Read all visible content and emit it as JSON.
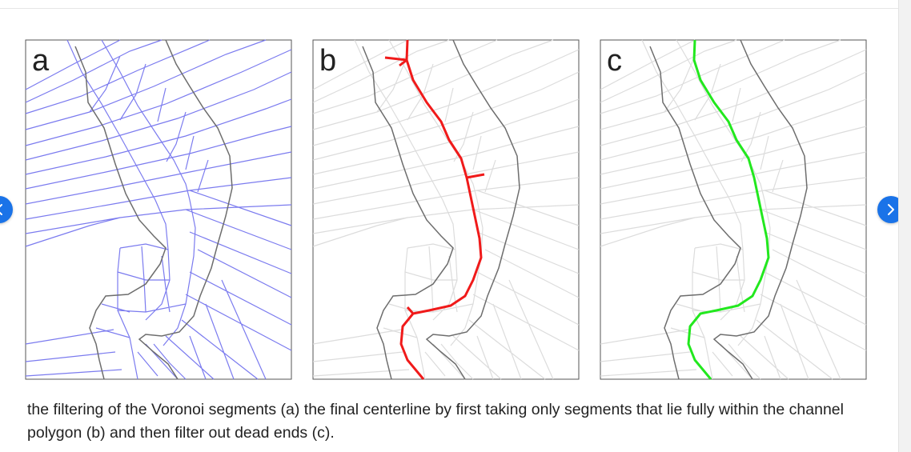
{
  "figure": {
    "panels": [
      {
        "label": "a",
        "network_color": "#7b7bef",
        "centerline_color": null
      },
      {
        "label": "b",
        "network_color": "#dcdcdc",
        "centerline_color": "#f01a1a"
      },
      {
        "label": "c",
        "network_color": "#dcdcdc",
        "centerline_color": "#22e81e"
      }
    ],
    "polygon_color": "#6d6d6d"
  },
  "caption": "the filtering of the Voronoi segments (a) the final centerline by first taking only segments that lie fully within the channel polygon (b) and then filter out dead ends (c).",
  "nav": {
    "prev_icon": "chevron-left-icon",
    "next_icon": "chevron-right-icon",
    "accent": "#1a73e8"
  }
}
